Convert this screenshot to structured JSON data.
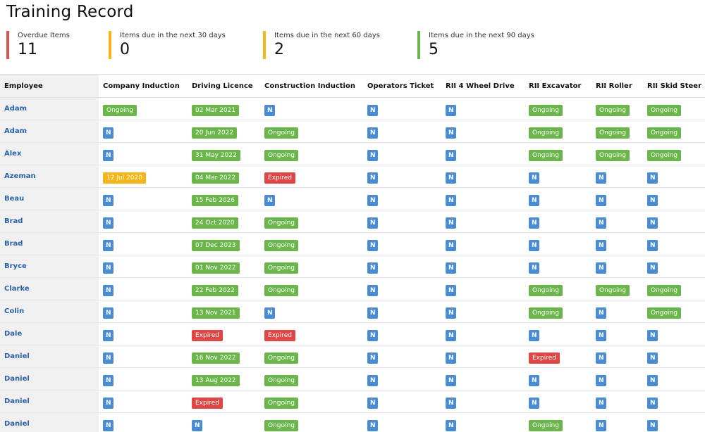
{
  "page": {
    "title": "Training Record"
  },
  "summary": [
    {
      "label": "Overdue Items",
      "value": "11",
      "color": "#d9534f"
    },
    {
      "label": "Items due in the next 30 days",
      "value": "0",
      "color": "#f5b418"
    },
    {
      "label": "Items due in the next 60 days",
      "value": "2",
      "color": "#f5b418"
    },
    {
      "label": "Items due in the next 90 days",
      "value": "5",
      "color": "#6bb64a"
    }
  ],
  "table": {
    "columns": [
      "Employee",
      "Company Induction",
      "Driving Licence",
      "Construction Induction",
      "Operators Ticket",
      "RII 4 Wheel Drive",
      "RII Excavator",
      "RII Roller",
      "RII Skid Steer"
    ],
    "rows": [
      {
        "employee": "Adam",
        "cells": [
          {
            "t": "ongoing",
            "v": "Ongoing"
          },
          {
            "t": "date",
            "v": "02 Mar 2021"
          },
          {
            "t": "n",
            "v": "N"
          },
          {
            "t": "n",
            "v": "N"
          },
          {
            "t": "n",
            "v": "N"
          },
          {
            "t": "ongoing",
            "v": "Ongoing"
          },
          {
            "t": "ongoing",
            "v": "Ongoing"
          },
          {
            "t": "ongoing",
            "v": "Ongoing"
          }
        ]
      },
      {
        "employee": "Adam",
        "cells": [
          {
            "t": "n",
            "v": "N"
          },
          {
            "t": "date",
            "v": "20 Jun 2022"
          },
          {
            "t": "ongoing",
            "v": "Ongoing"
          },
          {
            "t": "n",
            "v": "N"
          },
          {
            "t": "n",
            "v": "N"
          },
          {
            "t": "ongoing",
            "v": "Ongoing"
          },
          {
            "t": "ongoing",
            "v": "Ongoing"
          },
          {
            "t": "ongoing",
            "v": "Ongoing"
          }
        ]
      },
      {
        "employee": "Alex",
        "cells": [
          {
            "t": "n",
            "v": "N"
          },
          {
            "t": "date",
            "v": "31 May 2022"
          },
          {
            "t": "ongoing",
            "v": "Ongoing"
          },
          {
            "t": "n",
            "v": "N"
          },
          {
            "t": "n",
            "v": "N"
          },
          {
            "t": "ongoing",
            "v": "Ongoing"
          },
          {
            "t": "ongoing",
            "v": "Ongoing"
          },
          {
            "t": "ongoing",
            "v": "Ongoing"
          }
        ]
      },
      {
        "employee": "Azeman",
        "cells": [
          {
            "t": "warn",
            "v": "12 Jul 2020"
          },
          {
            "t": "date",
            "v": "04 Mar 2022"
          },
          {
            "t": "expired",
            "v": "Expired"
          },
          {
            "t": "n",
            "v": "N"
          },
          {
            "t": "n",
            "v": "N"
          },
          {
            "t": "n",
            "v": "N"
          },
          {
            "t": "n",
            "v": "N"
          },
          {
            "t": "n",
            "v": "N"
          }
        ]
      },
      {
        "employee": "Beau",
        "cells": [
          {
            "t": "n",
            "v": "N"
          },
          {
            "t": "date",
            "v": "15 Feb 2026"
          },
          {
            "t": "n",
            "v": "N"
          },
          {
            "t": "n",
            "v": "N"
          },
          {
            "t": "n",
            "v": "N"
          },
          {
            "t": "n",
            "v": "N"
          },
          {
            "t": "n",
            "v": "N"
          },
          {
            "t": "n",
            "v": "N"
          }
        ]
      },
      {
        "employee": "Brad",
        "cells": [
          {
            "t": "n",
            "v": "N"
          },
          {
            "t": "date",
            "v": "24 Oct 2020"
          },
          {
            "t": "ongoing",
            "v": "Ongoing"
          },
          {
            "t": "n",
            "v": "N"
          },
          {
            "t": "n",
            "v": "N"
          },
          {
            "t": "n",
            "v": "N"
          },
          {
            "t": "n",
            "v": "N"
          },
          {
            "t": "n",
            "v": "N"
          }
        ]
      },
      {
        "employee": "Brad",
        "cells": [
          {
            "t": "n",
            "v": "N"
          },
          {
            "t": "date",
            "v": "07 Dec 2023"
          },
          {
            "t": "ongoing",
            "v": "Ongoing"
          },
          {
            "t": "n",
            "v": "N"
          },
          {
            "t": "n",
            "v": "N"
          },
          {
            "t": "n",
            "v": "N"
          },
          {
            "t": "n",
            "v": "N"
          },
          {
            "t": "n",
            "v": "N"
          }
        ]
      },
      {
        "employee": "Bryce",
        "cells": [
          {
            "t": "n",
            "v": "N"
          },
          {
            "t": "date",
            "v": "01 Nov 2022"
          },
          {
            "t": "ongoing",
            "v": "Ongoing"
          },
          {
            "t": "n",
            "v": "N"
          },
          {
            "t": "n",
            "v": "N"
          },
          {
            "t": "n",
            "v": "N"
          },
          {
            "t": "n",
            "v": "N"
          },
          {
            "t": "n",
            "v": "N"
          }
        ]
      },
      {
        "employee": "Clarke",
        "cells": [
          {
            "t": "n",
            "v": "N"
          },
          {
            "t": "date",
            "v": "22 Feb 2022"
          },
          {
            "t": "ongoing",
            "v": "Ongoing"
          },
          {
            "t": "n",
            "v": "N"
          },
          {
            "t": "n",
            "v": "N"
          },
          {
            "t": "ongoing",
            "v": "Ongoing"
          },
          {
            "t": "ongoing",
            "v": "Ongoing"
          },
          {
            "t": "ongoing",
            "v": "Ongoing"
          }
        ]
      },
      {
        "employee": "Colin",
        "cells": [
          {
            "t": "n",
            "v": "N"
          },
          {
            "t": "date",
            "v": "13 Nov 2021"
          },
          {
            "t": "n",
            "v": "N"
          },
          {
            "t": "n",
            "v": "N"
          },
          {
            "t": "n",
            "v": "N"
          },
          {
            "t": "ongoing",
            "v": "Ongoing"
          },
          {
            "t": "n",
            "v": "N"
          },
          {
            "t": "ongoing",
            "v": "Ongoing"
          }
        ]
      },
      {
        "employee": "Dale",
        "cells": [
          {
            "t": "n",
            "v": "N"
          },
          {
            "t": "expired",
            "v": "Expired"
          },
          {
            "t": "expired",
            "v": "Expired"
          },
          {
            "t": "n",
            "v": "N"
          },
          {
            "t": "n",
            "v": "N"
          },
          {
            "t": "n",
            "v": "N"
          },
          {
            "t": "n",
            "v": "N"
          },
          {
            "t": "n",
            "v": "N"
          }
        ]
      },
      {
        "employee": "Daniel",
        "cells": [
          {
            "t": "n",
            "v": "N"
          },
          {
            "t": "date",
            "v": "16 Nov 2022"
          },
          {
            "t": "ongoing",
            "v": "Ongoing"
          },
          {
            "t": "n",
            "v": "N"
          },
          {
            "t": "n",
            "v": "N"
          },
          {
            "t": "expired",
            "v": "Expired"
          },
          {
            "t": "n",
            "v": "N"
          },
          {
            "t": "n",
            "v": "N"
          }
        ]
      },
      {
        "employee": "Daniel",
        "cells": [
          {
            "t": "n",
            "v": "N"
          },
          {
            "t": "date",
            "v": "13 Aug 2022"
          },
          {
            "t": "ongoing",
            "v": "Ongoing"
          },
          {
            "t": "n",
            "v": "N"
          },
          {
            "t": "n",
            "v": "N"
          },
          {
            "t": "n",
            "v": "N"
          },
          {
            "t": "n",
            "v": "N"
          },
          {
            "t": "n",
            "v": "N"
          }
        ]
      },
      {
        "employee": "Daniel",
        "cells": [
          {
            "t": "n",
            "v": "N"
          },
          {
            "t": "expired",
            "v": "Expired"
          },
          {
            "t": "ongoing",
            "v": "Ongoing"
          },
          {
            "t": "n",
            "v": "N"
          },
          {
            "t": "n",
            "v": "N"
          },
          {
            "t": "n",
            "v": "N"
          },
          {
            "t": "n",
            "v": "N"
          },
          {
            "t": "n",
            "v": "N"
          }
        ]
      },
      {
        "employee": "Daniel",
        "cells": [
          {
            "t": "n",
            "v": "N"
          },
          {
            "t": "n",
            "v": "N"
          },
          {
            "t": "ongoing",
            "v": "Ongoing"
          },
          {
            "t": "n",
            "v": "N"
          },
          {
            "t": "n",
            "v": "N"
          },
          {
            "t": "ongoing",
            "v": "Ongoing"
          },
          {
            "t": "n",
            "v": "N"
          },
          {
            "t": "n",
            "v": "N"
          }
        ]
      }
    ]
  }
}
